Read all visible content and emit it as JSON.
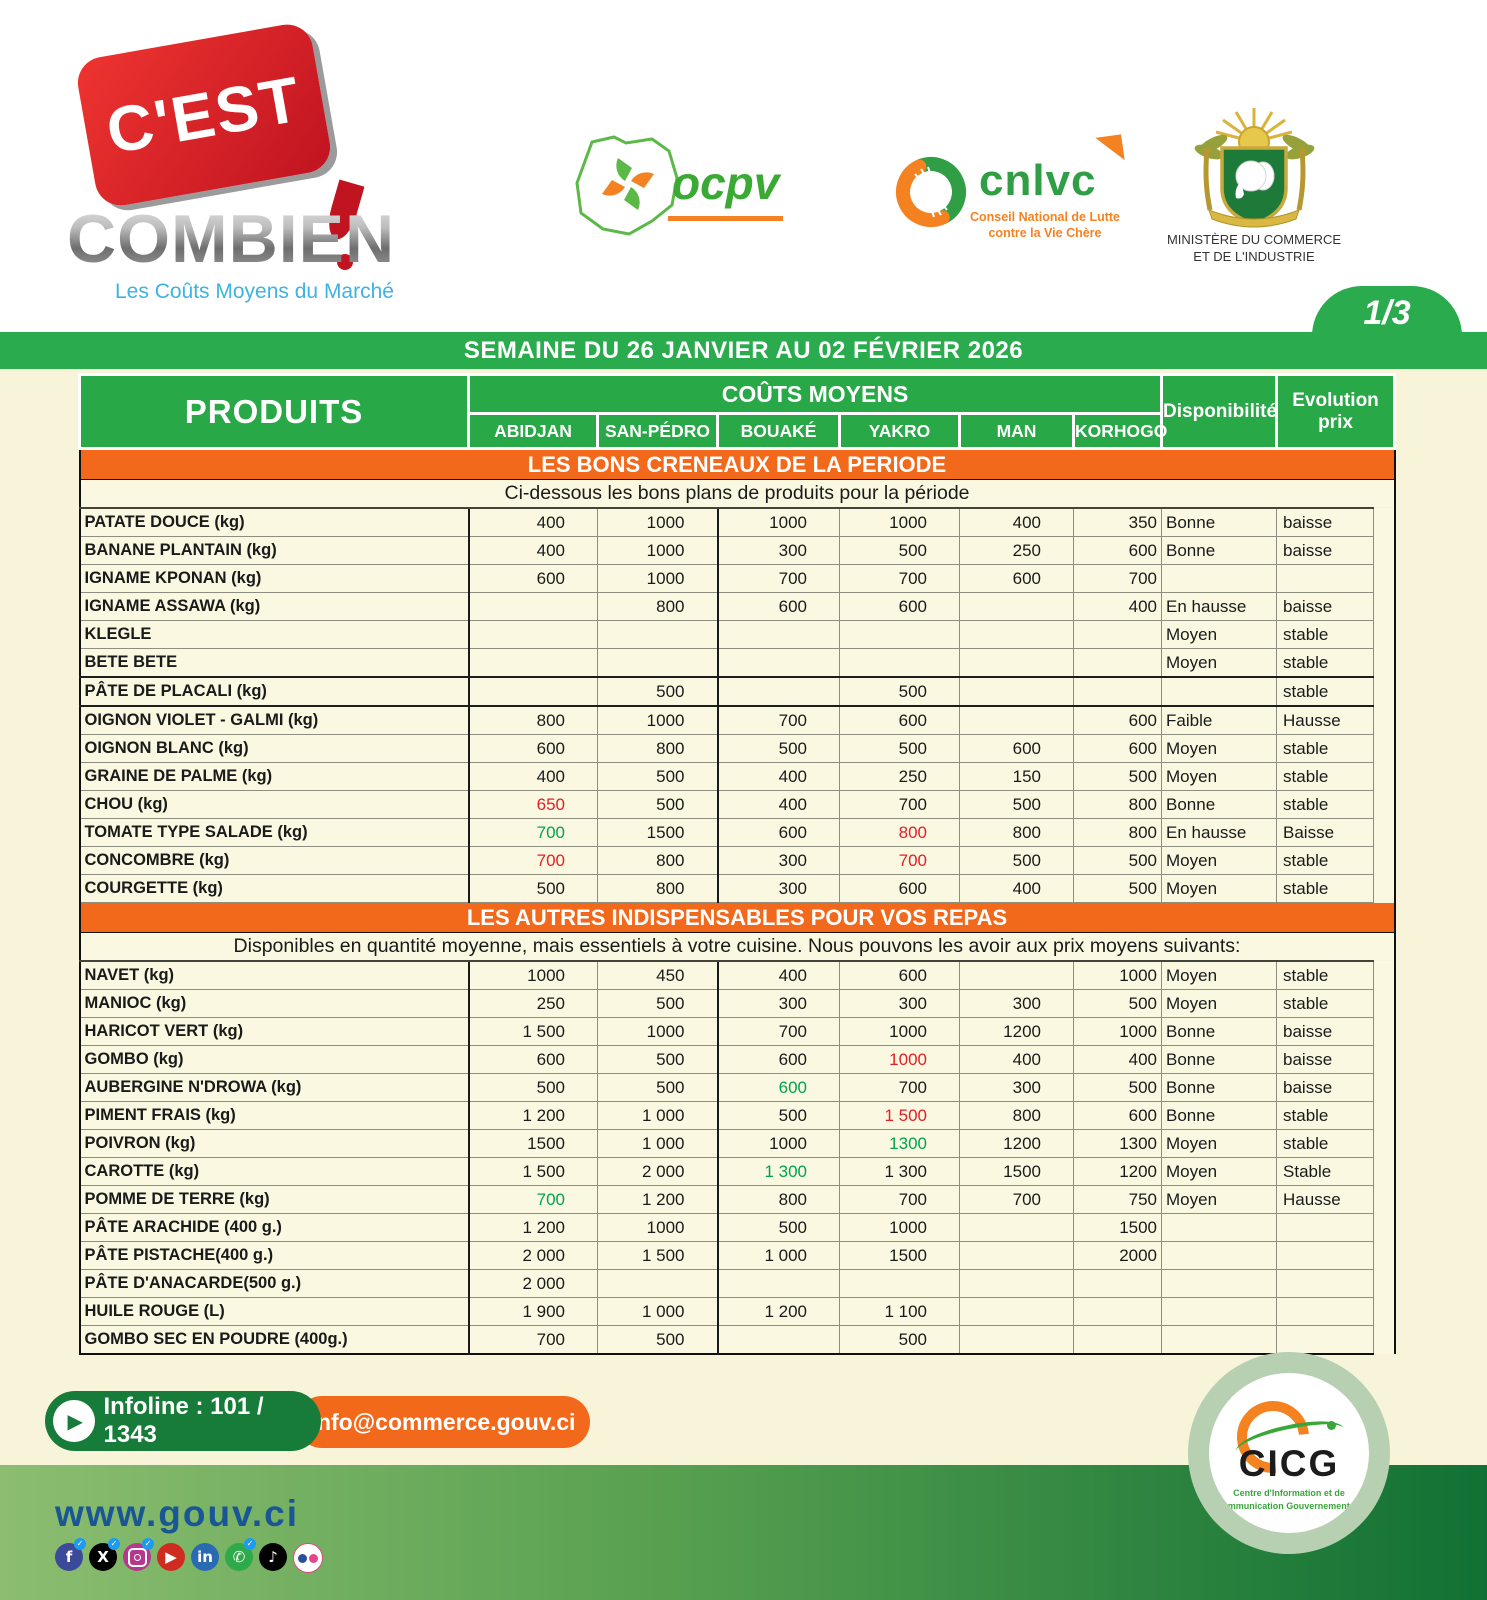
{
  "page": {
    "number": "1/3"
  },
  "header": {
    "logo_cest": "C'EST",
    "logo_combien": "COMBIEN",
    "logo_tagline": "Les Coûts Moyens du Marché",
    "ocpv_label": "ocpv",
    "cnlvc_label": "cnlvc",
    "cnlvc_sub1": "Conseil National de Lutte",
    "cnlvc_sub2": "contre la Vie Chère",
    "ministry_line1": "MINISTÈRE DU  COMMERCE",
    "ministry_line2": "ET DE L'INDUSTRIE"
  },
  "banner": {
    "week": "SEMAINE DU 26 JANVIER AU 02 FÉVRIER 2026"
  },
  "table": {
    "produits_header": "PRODUITS",
    "couts_moyens_header": "COÛTS MOYENS",
    "cities": [
      "ABIDJAN",
      "SAN-PÉDRO",
      "BOUAKÉ",
      "YAKRO",
      "MAN",
      "KORHOGO"
    ],
    "dispo_header": "Disponibilité",
    "evolution_header": "Evolution prix",
    "sections": [
      {
        "title": "LES BONS CRENEAUX DE LA PERIODE",
        "subtitle": "Ci-dessous les bons plans de produits pour la période",
        "rows": [
          {
            "name": "PATATE DOUCE (kg)",
            "prices": [
              "400",
              "1000",
              "1000",
              "1000",
              "400",
              "350"
            ],
            "colors": [
              "",
              "",
              "",
              "",
              "",
              ""
            ],
            "dispo": "Bonne",
            "evo": "baisse"
          },
          {
            "name": "BANANE PLANTAIN (kg)",
            "prices": [
              "400",
              "1000",
              "300",
              "500",
              "250",
              "600"
            ],
            "colors": [
              "",
              "",
              "",
              "",
              "",
              ""
            ],
            "dispo": "Bonne",
            "evo": "baisse"
          },
          {
            "name": "IGNAME KPONAN  (kg)",
            "prices": [
              "600",
              "1000",
              "700",
              "700",
              "600",
              "700"
            ],
            "colors": [
              "",
              "",
              "",
              "",
              "",
              ""
            ],
            "dispo": "",
            "evo": ""
          },
          {
            "name": "IGNAME ASSAWA (kg)",
            "prices": [
              "",
              "800",
              "600",
              "600",
              "",
              "400"
            ],
            "colors": [
              "",
              "",
              "",
              "",
              "",
              ""
            ],
            "dispo": "En hausse",
            "evo": "baisse"
          },
          {
            "name": "KLEGLE",
            "prices": [
              "",
              "",
              "",
              "",
              "",
              ""
            ],
            "colors": [
              "",
              "",
              "",
              "",
              "",
              ""
            ],
            "dispo": "Moyen",
            "evo": "stable"
          },
          {
            "name": "BETE BETE",
            "prices": [
              "",
              "",
              "",
              "",
              "",
              ""
            ],
            "colors": [
              "",
              "",
              "",
              "",
              "",
              ""
            ],
            "dispo": "Moyen",
            "evo": "stable",
            "divider": true
          },
          {
            "name": "PÂTE DE PLACALI (kg)",
            "prices": [
              "",
              "500",
              "",
              "500",
              "",
              ""
            ],
            "colors": [
              "",
              "",
              "",
              "",
              "",
              ""
            ],
            "dispo": "",
            "evo": "stable",
            "divider": true
          },
          {
            "name": "OIGNON VIOLET - GALMI (kg)",
            "prices": [
              "800",
              "1000",
              "700",
              "600",
              "",
              "600"
            ],
            "colors": [
              "",
              "",
              "",
              "",
              "",
              ""
            ],
            "dispo": "Faible",
            "evo": "Hausse"
          },
          {
            "name": "OIGNON BLANC  (kg)",
            "prices": [
              "600",
              "800",
              "500",
              "500",
              "600",
              "600"
            ],
            "colors": [
              "",
              "",
              "",
              "",
              "",
              ""
            ],
            "dispo": "Moyen",
            "evo": "stable"
          },
          {
            "name": "GRAINE DE PALME  (kg)",
            "prices": [
              "400",
              "500",
              "400",
              "250",
              "150",
              "500"
            ],
            "colors": [
              "",
              "",
              "",
              "",
              "",
              ""
            ],
            "dispo": "Moyen",
            "evo": "stable"
          },
          {
            "name": "CHOU (kg)",
            "prices": [
              "650",
              "500",
              "400",
              "700",
              "500",
              "800"
            ],
            "colors": [
              "red",
              "",
              "",
              "",
              "",
              ""
            ],
            "dispo": "Bonne",
            "evo": "stable"
          },
          {
            "name": "TOMATE TYPE SALADE (kg)",
            "prices": [
              "700",
              "1500",
              "600",
              "800",
              "800",
              "800"
            ],
            "colors": [
              "green",
              "",
              "",
              "red",
              "",
              ""
            ],
            "dispo": "En hausse",
            "evo": "Baisse"
          },
          {
            "name": "CONCOMBRE (kg)",
            "prices": [
              "700",
              "800",
              "300",
              "700",
              "500",
              "500"
            ],
            "colors": [
              "red",
              "",
              "",
              "red",
              "",
              ""
            ],
            "dispo": "Moyen",
            "evo": "stable"
          },
          {
            "name": "COURGETTE (kg)",
            "prices": [
              "500",
              "800",
              "300",
              "600",
              "400",
              "500"
            ],
            "colors": [
              "",
              "",
              "",
              "",
              "",
              ""
            ],
            "dispo": "Moyen",
            "evo": "stable"
          }
        ]
      },
      {
        "title": "LES AUTRES INDISPENSABLES POUR VOS REPAS",
        "subtitle": "Disponibles en quantité moyenne, mais essentiels à votre cuisine. Nous pouvons les avoir aux prix moyens suivants:",
        "rows": [
          {
            "name": "NAVET (kg)",
            "prices": [
              "1000",
              "450",
              "400",
              "600",
              "",
              "1000"
            ],
            "colors": [
              "",
              "",
              "",
              "",
              "",
              ""
            ],
            "dispo": "Moyen",
            "evo": "stable"
          },
          {
            "name": "MANIOC (kg)",
            "prices": [
              "250",
              "500",
              "300",
              "300",
              "300",
              "500"
            ],
            "colors": [
              "",
              "",
              "",
              "",
              "",
              ""
            ],
            "dispo": "Moyen",
            "evo": "stable"
          },
          {
            "name": "HARICOT VERT (kg)",
            "prices": [
              "1 500",
              "1000",
              "700",
              "1000",
              "1200",
              "1000"
            ],
            "colors": [
              "",
              "",
              "",
              "",
              "",
              ""
            ],
            "dispo": "Bonne",
            "evo": "baisse"
          },
          {
            "name": "GOMBO (kg)",
            "prices": [
              "600",
              "500",
              "600",
              "1000",
              "400",
              "400"
            ],
            "colors": [
              "",
              "",
              "",
              "red",
              "",
              ""
            ],
            "dispo": "Bonne",
            "evo": "baisse"
          },
          {
            "name": "AUBERGINE N'DROWA  (kg)",
            "prices": [
              "500",
              "500",
              "600",
              "700",
              "300",
              "500"
            ],
            "colors": [
              "",
              "",
              "green",
              "",
              "",
              ""
            ],
            "dispo": "Bonne",
            "evo": "baisse"
          },
          {
            "name": "PIMENT FRAIS (kg)",
            "prices": [
              "1 200",
              "1 000",
              "500",
              "1 500",
              "800",
              "600"
            ],
            "colors": [
              "",
              "",
              "",
              "red",
              "",
              ""
            ],
            "dispo": "Bonne",
            "evo": "stable"
          },
          {
            "name": "POIVRON (kg)",
            "prices": [
              "1500",
              "1 000",
              "1000",
              "1300",
              "1200",
              "1300"
            ],
            "colors": [
              "",
              "",
              "",
              "green",
              "",
              ""
            ],
            "dispo": "Moyen",
            "evo": "stable"
          },
          {
            "name": "CAROTTE (kg)",
            "prices": [
              "1 500",
              "2 000",
              "1 300",
              "1 300",
              "1500",
              "1200"
            ],
            "colors": [
              "",
              "",
              "green",
              "",
              "",
              ""
            ],
            "dispo": "Moyen",
            "evo": "Stable"
          },
          {
            "name": "POMME DE TERRE (kg)",
            "prices": [
              "700",
              "1 200",
              "800",
              "700",
              "700",
              "750"
            ],
            "colors": [
              "green",
              "",
              "",
              "",
              "",
              ""
            ],
            "dispo": "Moyen",
            "evo": "Hausse"
          },
          {
            "name": "PÂTE ARACHIDE (400 g.)",
            "prices": [
              "1 200",
              "1000",
              "500",
              "1000",
              "",
              "1500"
            ],
            "colors": [
              "",
              "",
              "",
              "",
              "",
              ""
            ],
            "dispo": "",
            "evo": ""
          },
          {
            "name": "PÂTE PISTACHE(400 g.)",
            "prices": [
              "2 000",
              "1 500",
              "1 000",
              "1500",
              "",
              "2000"
            ],
            "colors": [
              "",
              "",
              "",
              "",
              "",
              ""
            ],
            "dispo": "",
            "evo": ""
          },
          {
            "name": "PÂTE D'ANACARDE(500 g.)",
            "prices": [
              "2 000",
              "",
              "",
              "",
              "",
              ""
            ],
            "colors": [
              "",
              "",
              "",
              "",
              "",
              ""
            ],
            "dispo": "",
            "evo": ""
          },
          {
            "name": "HUILE ROUGE (L)",
            "prices": [
              "1 900",
              "1 000",
              "1 200",
              "1 100",
              "",
              ""
            ],
            "colors": [
              "",
              "",
              "",
              "",
              "",
              ""
            ],
            "dispo": "",
            "evo": ""
          },
          {
            "name": "GOMBO SEC EN POUDRE (400g.)",
            "prices": [
              "700",
              "500",
              "",
              "500",
              "",
              ""
            ],
            "colors": [
              "",
              "",
              "",
              "",
              "",
              ""
            ],
            "dispo": "",
            "evo": ""
          }
        ]
      }
    ]
  },
  "footer": {
    "infoline": "Infoline : 101 / 1343",
    "email": "info@commerce.gouv.ci",
    "website": "www.gouv.ci",
    "social": [
      {
        "name": "facebook-icon",
        "glyph": "f",
        "bg": "#3b4a99",
        "badge": true
      },
      {
        "name": "x-icon",
        "glyph": "X",
        "bg": "#000000",
        "badge": true
      },
      {
        "name": "instagram-icon",
        "glyph": "insta",
        "bg": "#b5388f",
        "badge": true
      },
      {
        "name": "youtube-icon",
        "glyph": "▶",
        "bg": "#cf2b20",
        "badge": false
      },
      {
        "name": "linkedin-icon",
        "glyph": "in",
        "bg": "#2a6ab2",
        "badge": false
      },
      {
        "name": "whatsapp-icon",
        "glyph": "✆",
        "bg": "#2faa4a",
        "badge": true
      },
      {
        "name": "tiktok-icon",
        "glyph": "♪",
        "bg": "#000000",
        "badge": false
      },
      {
        "name": "flickr-icon",
        "glyph": "flickr",
        "bg": "#ffffff",
        "badge": false
      }
    ],
    "cicg": {
      "label": "CICG",
      "sub1": "Centre d'Information et de",
      "sub2": "Communication Gouvernementale"
    }
  },
  "colors": {
    "green_band": "#2aab4d",
    "table_header_green": "#28a847",
    "orange_band": "#f2691c",
    "price_up_red": "#e31e26",
    "price_down_green": "#00a44f",
    "infoline_green": "#177c39",
    "website_navy": "#1a5695",
    "cream_cell": "#fbf8e1"
  }
}
